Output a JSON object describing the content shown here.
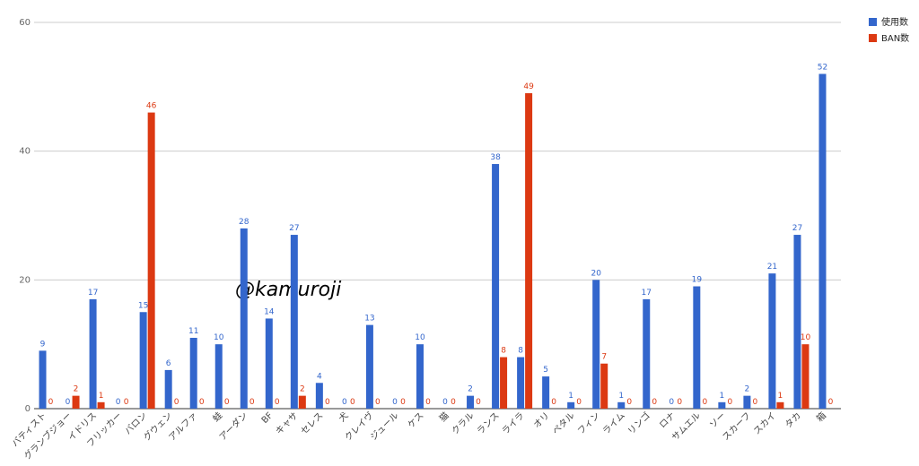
{
  "chart_data": {
    "type": "bar",
    "watermark": "@kamuroji",
    "categories": [
      "バティスト",
      "グランブジョー",
      "イドリス",
      "フリッカー",
      "バロン",
      "グウェン",
      "アルファ",
      "蛙",
      "アーダン",
      "BF",
      "キャサ",
      "セレス",
      "犬",
      "クレイヴ",
      "ジュール",
      "ケス",
      "猫",
      "クラル",
      "ランス",
      "ライラ",
      "オリ",
      "ペタル",
      "フィン",
      "ライム",
      "リンゴ",
      "ロナ",
      "サムエル",
      "ソー",
      "スカーフ",
      "スカイ",
      "タカ",
      "箱"
    ],
    "series": [
      {
        "name": "使用数",
        "color": "#3366cc",
        "values": [
          9,
          0,
          17,
          0,
          15,
          6,
          11,
          10,
          28,
          14,
          27,
          4,
          0,
          13,
          0,
          10,
          0,
          2,
          38,
          8,
          5,
          1,
          20,
          1,
          17,
          0,
          19,
          1,
          2,
          21,
          27,
          52
        ]
      },
      {
        "name": "BAN数",
        "color": "#dc3912",
        "values": [
          0,
          2,
          1,
          0,
          46,
          0,
          0,
          0,
          0,
          0,
          2,
          0,
          0,
          0,
          0,
          0,
          0,
          0,
          8,
          49,
          0,
          0,
          7,
          0,
          0,
          0,
          0,
          0,
          0,
          1,
          10,
          0
        ]
      }
    ],
    "ylim": [
      0,
      60
    ],
    "yticks": [
      0,
      20,
      40,
      60
    ],
    "grid": true,
    "legend": "top-right"
  }
}
